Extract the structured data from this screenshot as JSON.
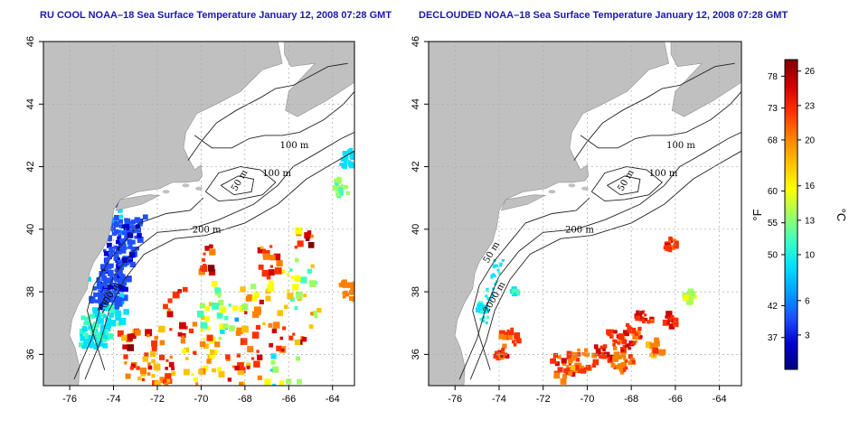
{
  "panels": [
    {
      "title": "RU COOL NOAA–18 Sea Surface Temperature January 12, 2008 07:28 GMT",
      "type": "raw",
      "x_ticks": [
        "-76",
        "-74",
        "-72",
        "-70",
        "-68",
        "-66",
        "-64"
      ],
      "y_ticks": [
        "46",
        "44",
        "42",
        "40",
        "38",
        "36"
      ],
      "contour_labels": [
        "100 m",
        "100 m",
        "50 m",
        "200 m",
        "2000 m"
      ]
    },
    {
      "title": "DECLOUDED NOAA–18 Sea Surface Temperature January 12, 2008 07:28 GMT",
      "type": "declouded",
      "x_ticks": [
        "-76",
        "-74",
        "-72",
        "-70",
        "-68",
        "-66",
        "-64"
      ],
      "y_ticks": [
        "46",
        "44",
        "42",
        "40",
        "38",
        "36"
      ],
      "contour_labels": [
        "100 m",
        "100 m",
        "50 m",
        "200 m",
        "50 m",
        "2000 m"
      ]
    }
  ],
  "map_extent": {
    "lon": [
      -77.2,
      -63.0
    ],
    "lat": [
      35.0,
      46.0
    ]
  },
  "colorbar": {
    "fahrenheit_ticks": [
      "78",
      "73",
      "68",
      "60",
      "55",
      "50",
      "42",
      "37"
    ],
    "celsius_ticks": [
      "26",
      "23",
      "20",
      "16",
      "13",
      "10",
      "6",
      "3"
    ],
    "fahrenheit_unit": "°F",
    "celsius_unit": "°C",
    "range_c": [
      0,
      27
    ],
    "colors": [
      "#000080",
      "#0000cd",
      "#1e50ff",
      "#00a0ff",
      "#00e0ff",
      "#40ffc0",
      "#a0ff60",
      "#ffff00",
      "#ffc000",
      "#ff8000",
      "#ff3000",
      "#d00000",
      "#800000"
    ]
  },
  "colors": {
    "land": "#c0c0c0",
    "ocean": "#ffffff",
    "grid": "#aaaaaa",
    "title": "#1a1aa6"
  }
}
